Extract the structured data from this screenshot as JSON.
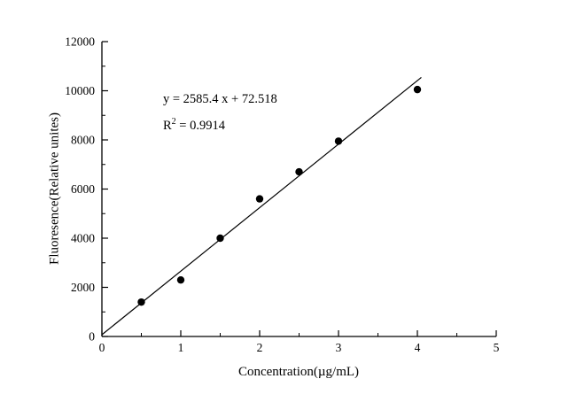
{
  "chart_data": {
    "type": "scatter",
    "title": "",
    "xlabel": "Concentration(µg/mL)",
    "ylabel": "Fluoresence(Relative unites)",
    "xlim": [
      0,
      5
    ],
    "ylim": [
      0,
      12000
    ],
    "x_ticks": [
      0,
      1,
      2,
      3,
      4,
      5
    ],
    "x_minor_ticks": [
      0.5,
      1.5,
      2.5,
      3.5,
      4.5
    ],
    "y_ticks": [
      0,
      2000,
      4000,
      6000,
      8000,
      10000,
      12000
    ],
    "y_minor_ticks": [
      1000,
      3000,
      5000,
      7000,
      9000,
      11000
    ],
    "points": [
      {
        "x": 0.5,
        "y": 1400
      },
      {
        "x": 1.0,
        "y": 2300
      },
      {
        "x": 1.5,
        "y": 4000
      },
      {
        "x": 2.0,
        "y": 5600
      },
      {
        "x": 2.5,
        "y": 6700
      },
      {
        "x": 3.0,
        "y": 7950
      },
      {
        "x": 4.0,
        "y": 10050
      }
    ],
    "trendline": {
      "slope": 2585.4,
      "intercept": 72.518,
      "x_start": 0,
      "x_end": 4.05
    },
    "annotation": {
      "equation": "y = 2585.4 x + 72.518",
      "r2_base": "R",
      "r2_sup": "2",
      "r2_rest": " = 0.9914"
    },
    "marker_color": "#000000",
    "line_color": "#000000",
    "axis_color": "#000000",
    "grid": false,
    "legend": false
  }
}
